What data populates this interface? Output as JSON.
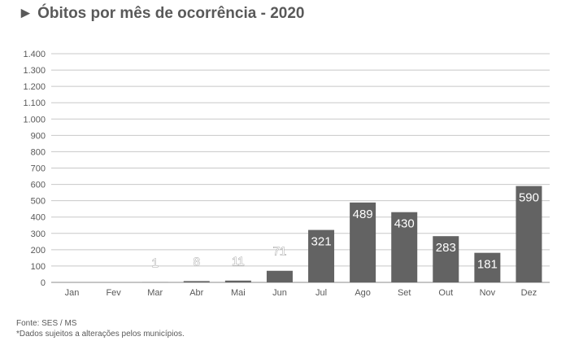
{
  "title": "► Óbitos por mês de ocorrência - 2020",
  "footer": {
    "source": "Fonte: SES / MS",
    "note": "*Dados sujeitos a alterações pelos municípios."
  },
  "chart_data": {
    "type": "bar",
    "title": "► Óbitos por mês de ocorrência - 2020",
    "categories": [
      "Jan",
      "Fev",
      "Mar",
      "Abr",
      "Mai",
      "Jun",
      "Jul",
      "Ago",
      "Set",
      "Out",
      "Nov",
      "Dez"
    ],
    "values": [
      null,
      null,
      1,
      8,
      11,
      71,
      321,
      489,
      430,
      283,
      181,
      590
    ],
    "ylim": [
      0,
      1400
    ],
    "yticks": [
      0,
      100,
      200,
      300,
      400,
      500,
      600,
      700,
      800,
      900,
      1000,
      1100,
      1200,
      1300,
      1400
    ],
    "ytick_labels": [
      "0",
      "100",
      "200",
      "300",
      "400",
      "500",
      "600",
      "700",
      "800",
      "900",
      "1.000",
      "1.100",
      "1.200",
      "1.300",
      "1.400"
    ],
    "grid": true,
    "bar_color": "#636363",
    "data_labels": true
  }
}
